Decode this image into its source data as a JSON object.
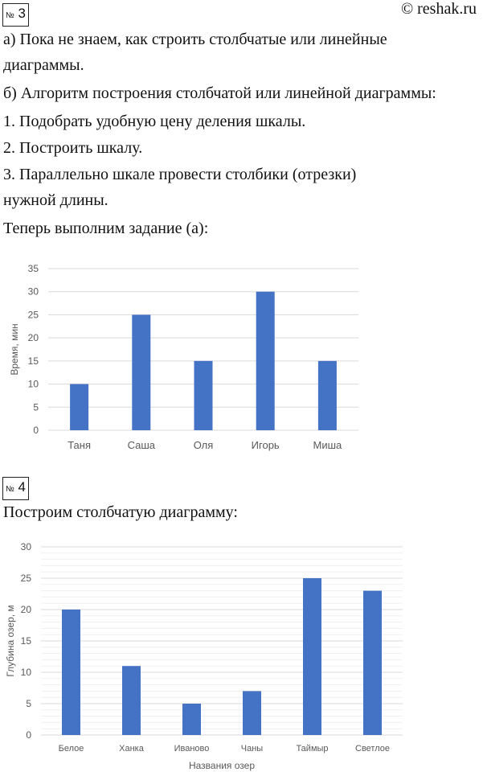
{
  "task3": {
    "number": "3",
    "number_prefix": "№",
    "copyright": "© reshak.ru",
    "lines": [
      "а) Пока не знаем, как строить столбчатые или линейные",
      "диаграммы.",
      "б) Алгоритм построения столбчатой или линейной диаграммы:",
      "1.  Подобрать удобную цену деления шкалы.",
      "2.  Построить шкалу.",
      "3.  Параллельно шкале провести столбики (отрезки)",
      "нужной длины.",
      "Теперь выполним задание (а):"
    ]
  },
  "task4": {
    "number": "4",
    "number_prefix": "№",
    "intro": "Построим столбчатую диаграмму:"
  },
  "colors": {
    "bar": "#4472C4",
    "grid": "#D9D9D9",
    "minor_grid": "#EFEFEF"
  },
  "chart_data": [
    {
      "type": "bar",
      "title": "",
      "categories": [
        "Таня",
        "Саша",
        "Оля",
        "Игорь",
        "Миша"
      ],
      "values": [
        10,
        25,
        15,
        30,
        15
      ],
      "xlabel": "",
      "ylabel": "Время, мин",
      "ylim": [
        0,
        35
      ],
      "yticks": [
        "0",
        "5",
        "10",
        "15",
        "20",
        "25",
        "30",
        "35"
      ],
      "grid": true
    },
    {
      "type": "bar",
      "title": "",
      "categories": [
        "Белое",
        "Ханка",
        "Иваново",
        "Чаны",
        "Таймыр",
        "Светлое"
      ],
      "values": [
        20,
        11,
        5,
        7,
        25,
        23
      ],
      "xlabel": "Названия озер",
      "ylabel": "Глубина озер, м",
      "ylim": [
        0,
        30
      ],
      "yticks": [
        "0",
        "5",
        "10",
        "15",
        "20",
        "25",
        "30"
      ],
      "grid": true,
      "minor_grid": true
    }
  ]
}
